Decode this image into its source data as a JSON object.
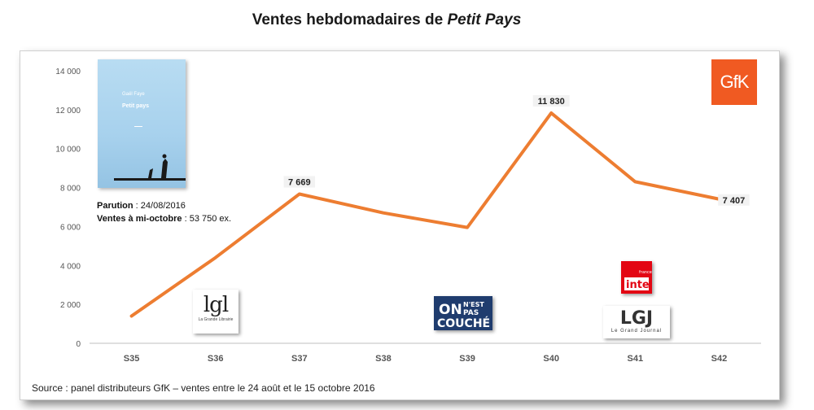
{
  "title": {
    "main": "Ventes hebdomadaires de ",
    "italic": "Petit Pays"
  },
  "source": "Source : panel distributeurs GfK – ventes entre le 24 août et le 15 octobre 2016",
  "book": {
    "author": "Gaël Faye",
    "title": "Petit pays",
    "parution_label": "Parution",
    "parution_value": " : 24/08/2016",
    "ventes_label": "Ventes à mi-octobre",
    "ventes_value": " : 53 750 ex."
  },
  "logos": {
    "gfk": "GfK",
    "lgl_big": "lgl",
    "lgl_small": "La Grande Librairie",
    "onpc": "ON N'EST PAS COUCHÉ",
    "inter": "inter",
    "inter_small": "france",
    "lgj_big": "LGJ",
    "lgj_small": "Le Grand Journal"
  },
  "colors": {
    "line": "#ed7d31",
    "accent_gfk": "#f05a22"
  },
  "chart_data": {
    "type": "line",
    "categories": [
      "S35",
      "S36",
      "S37",
      "S38",
      "S39",
      "S40",
      "S41",
      "S42"
    ],
    "series": [
      {
        "values": [
          1400,
          4400,
          7669,
          6700,
          5950,
          11830,
          8300,
          7407
        ]
      }
    ],
    "data_labels": [
      {
        "index": 2,
        "text": "7 669"
      },
      {
        "index": 5,
        "text": "11 830"
      },
      {
        "index": 7,
        "text": "7 407"
      }
    ],
    "yticks": [
      0,
      2000,
      4000,
      6000,
      8000,
      10000,
      12000,
      14000
    ],
    "ytick_labels": [
      "0",
      "2 000",
      "4 000",
      "6 000",
      "8 000",
      "10 000",
      "12 000",
      "14 000"
    ],
    "ylim": [
      0,
      14000
    ],
    "grid": false,
    "legend": "none"
  }
}
